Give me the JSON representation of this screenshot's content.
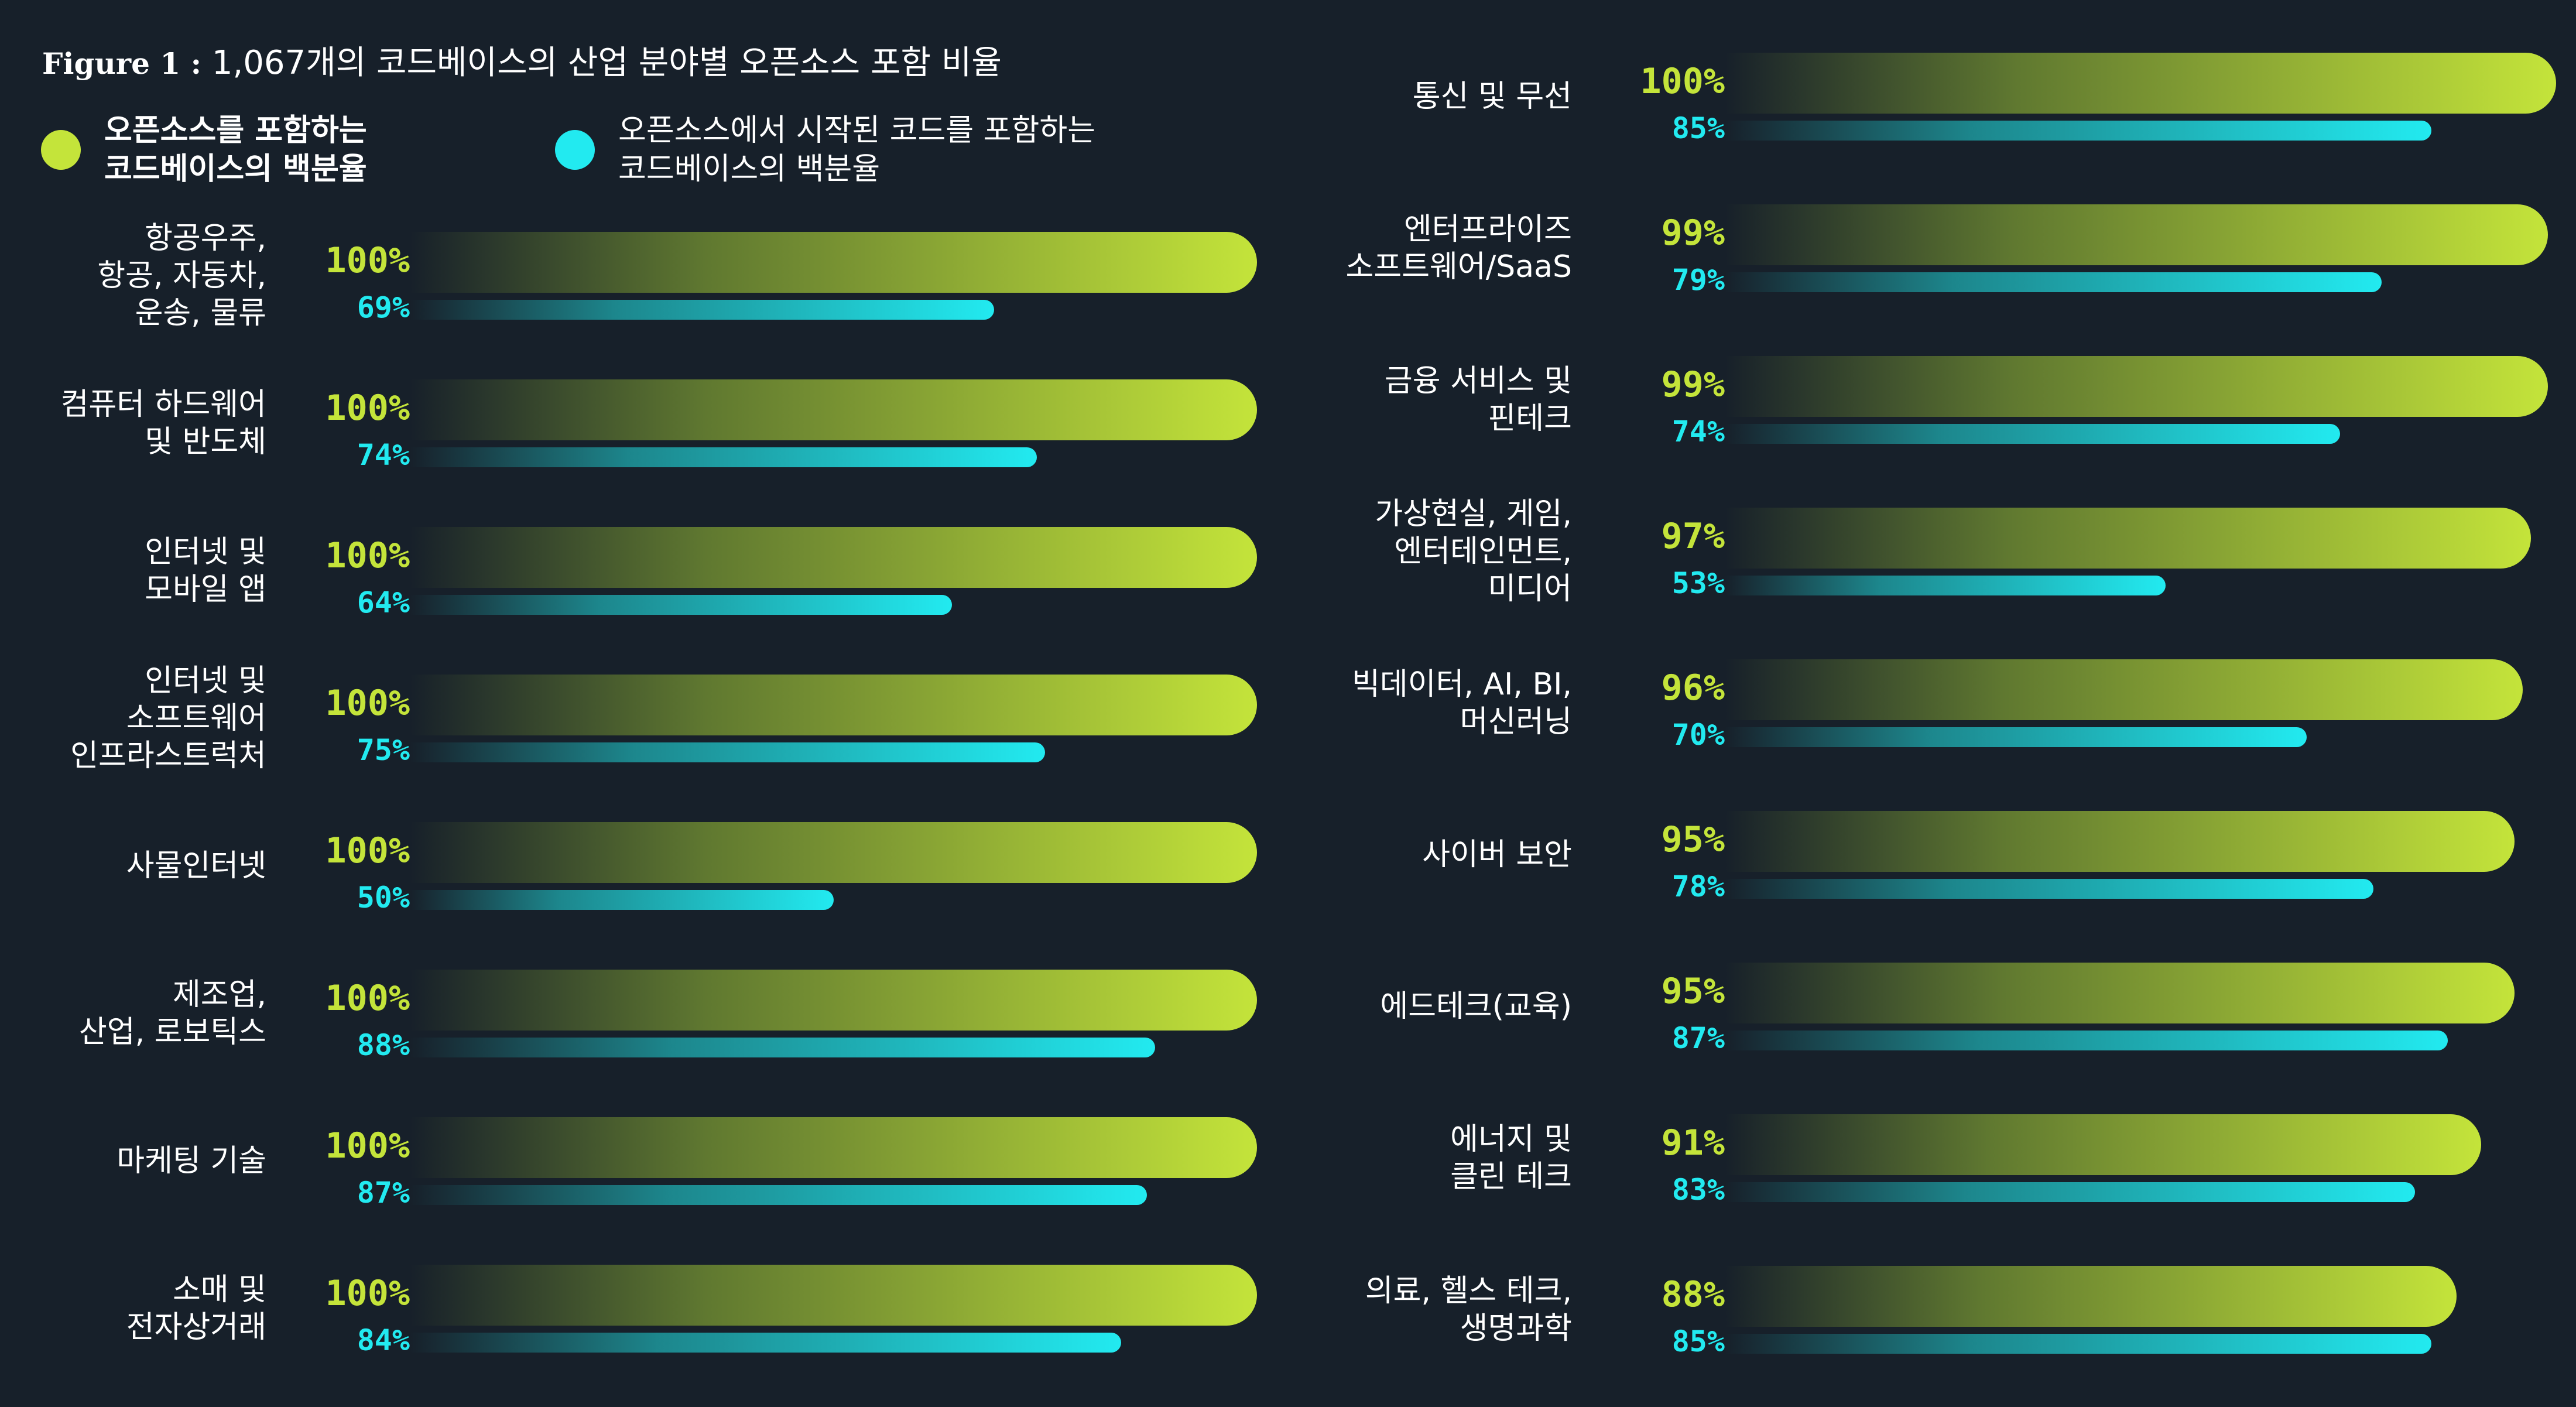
{
  "chart_data": {
    "type": "bar",
    "orientation": "horizontal",
    "title_prefix": "Figure 1 :",
    "title": "1,067개의 코드베이스의 산업 분야별 오픈소스 포함 비율",
    "xlim": [
      0,
      100
    ],
    "grid": false,
    "legend_placement": "top-left",
    "colors": {
      "background": "#17202a",
      "open_source": "#c4e43a",
      "originated_code": "#22eaf0"
    },
    "series": [
      {
        "name": "오픈소스를 포함하는\n코드베이스의 백분율",
        "key": "open_source"
      },
      {
        "name": "오픈소스에서 시작된 코드를 포함하는\n코드베이스의 백분율",
        "key": "originated_code"
      }
    ],
    "columns": [
      [
        {
          "category": "항공우주,\n항공, 자동차,\n운송, 물류",
          "open_source": 100,
          "originated_code": 69
        },
        {
          "category": "컴퓨터 하드웨어\n및  반도체",
          "open_source": 100,
          "originated_code": 74
        },
        {
          "category": "인터넷 및\n모바일 앱",
          "open_source": 100,
          "originated_code": 64
        },
        {
          "category": "인터넷 및\n소프트웨어\n인프라스트럭처",
          "open_source": 100,
          "originated_code": 75
        },
        {
          "category": "사물인터넷",
          "open_source": 100,
          "originated_code": 50
        },
        {
          "category": "제조업,\n산업, 로보틱스",
          "open_source": 100,
          "originated_code": 88
        },
        {
          "category": "마케팅 기술",
          "open_source": 100,
          "originated_code": 87
        },
        {
          "category": "소매 및\n전자상거래",
          "open_source": 100,
          "originated_code": 84
        }
      ],
      [
        {
          "category": "통신 및 무선",
          "open_source": 100,
          "originated_code": 85
        },
        {
          "category": "엔터프라이즈\n소프트웨어/SaaS",
          "open_source": 99,
          "originated_code": 79
        },
        {
          "category": "금융 서비스 및\n핀테크",
          "open_source": 99,
          "originated_code": 74
        },
        {
          "category": "가상현실, 게임,\n엔터테인먼트,\n미디어",
          "open_source": 97,
          "originated_code": 53
        },
        {
          "category": "빅데이터, AI, BI,\n머신러닝",
          "open_source": 96,
          "originated_code": 70
        },
        {
          "category": "사이버 보안",
          "open_source": 95,
          "originated_code": 78
        },
        {
          "category": "에드테크(교육)",
          "open_source": 95,
          "originated_code": 87
        },
        {
          "category": "에너지 및\n클린 테크",
          "open_source": 91,
          "originated_code": 83
        },
        {
          "category": "의료, 헬스 테크,\n생명과학",
          "open_source": 88,
          "originated_code": 85
        }
      ]
    ]
  }
}
